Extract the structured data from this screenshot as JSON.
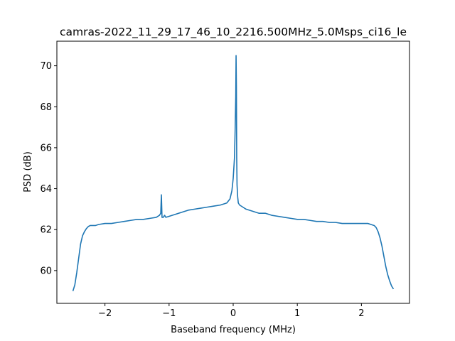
{
  "chart_data": {
    "type": "line",
    "title": "camras-2022_11_29_17_46_10_2216.500MHz_5.0Msps_ci16_le",
    "xlabel": "Baseband frequency (MHz)",
    "ylabel": "PSD (dB)",
    "xlim": [
      -2.75,
      2.75
    ],
    "ylim": [
      58.4,
      71.2
    ],
    "xticks": [
      -2,
      -1,
      0,
      1,
      2
    ],
    "xtick_labels": [
      "−2",
      "−1",
      "0",
      "1",
      "2"
    ],
    "yticks": [
      60,
      62,
      64,
      66,
      68,
      70
    ],
    "ytick_labels": [
      "60",
      "62",
      "64",
      "66",
      "68",
      "70"
    ],
    "grid": false,
    "legend": "none",
    "line_color": "#1f77b4",
    "series": [
      {
        "x": [
          -2.5,
          -2.47,
          -2.44,
          -2.41,
          -2.38,
          -2.35,
          -2.32,
          -2.29,
          -2.26,
          -2.23,
          -2.2,
          -2.15,
          -2.1,
          -2.0,
          -1.9,
          -1.8,
          -1.7,
          -1.6,
          -1.5,
          -1.4,
          -1.3,
          -1.2,
          -1.15,
          -1.13,
          -1.12,
          -1.11,
          -1.1,
          -1.09,
          -1.07,
          -1.05,
          -1.0,
          -0.9,
          -0.8,
          -0.7,
          -0.6,
          -0.5,
          -0.4,
          -0.3,
          -0.2,
          -0.1,
          -0.05,
          -0.02,
          0.0,
          0.02,
          0.03,
          0.04,
          0.045,
          0.05,
          0.055,
          0.06,
          0.07,
          0.08,
          0.1,
          0.15,
          0.2,
          0.3,
          0.4,
          0.5,
          0.6,
          0.7,
          0.8,
          0.9,
          1.0,
          1.1,
          1.2,
          1.3,
          1.4,
          1.5,
          1.6,
          1.7,
          1.8,
          1.9,
          2.0,
          2.1,
          2.15,
          2.2,
          2.23,
          2.26,
          2.29,
          2.32,
          2.35,
          2.38,
          2.41,
          2.44,
          2.47,
          2.5
        ],
        "y": [
          59.0,
          59.3,
          59.9,
          60.6,
          61.3,
          61.7,
          61.9,
          62.05,
          62.15,
          62.2,
          62.2,
          62.2,
          62.25,
          62.3,
          62.3,
          62.35,
          62.4,
          62.45,
          62.5,
          62.5,
          62.55,
          62.6,
          62.7,
          62.8,
          63.7,
          62.6,
          62.6,
          62.6,
          62.7,
          62.6,
          62.65,
          62.75,
          62.85,
          62.95,
          63.0,
          63.05,
          63.1,
          63.15,
          63.2,
          63.3,
          63.5,
          63.9,
          64.5,
          65.5,
          66.8,
          68.5,
          70.5,
          69.0,
          65.5,
          64.2,
          63.6,
          63.3,
          63.2,
          63.1,
          63.0,
          62.9,
          62.8,
          62.8,
          62.7,
          62.65,
          62.6,
          62.55,
          62.5,
          62.5,
          62.45,
          62.4,
          62.4,
          62.35,
          62.35,
          62.3,
          62.3,
          62.3,
          62.3,
          62.3,
          62.25,
          62.2,
          62.1,
          61.9,
          61.6,
          61.2,
          60.7,
          60.2,
          59.8,
          59.5,
          59.25,
          59.1
        ]
      }
    ]
  }
}
